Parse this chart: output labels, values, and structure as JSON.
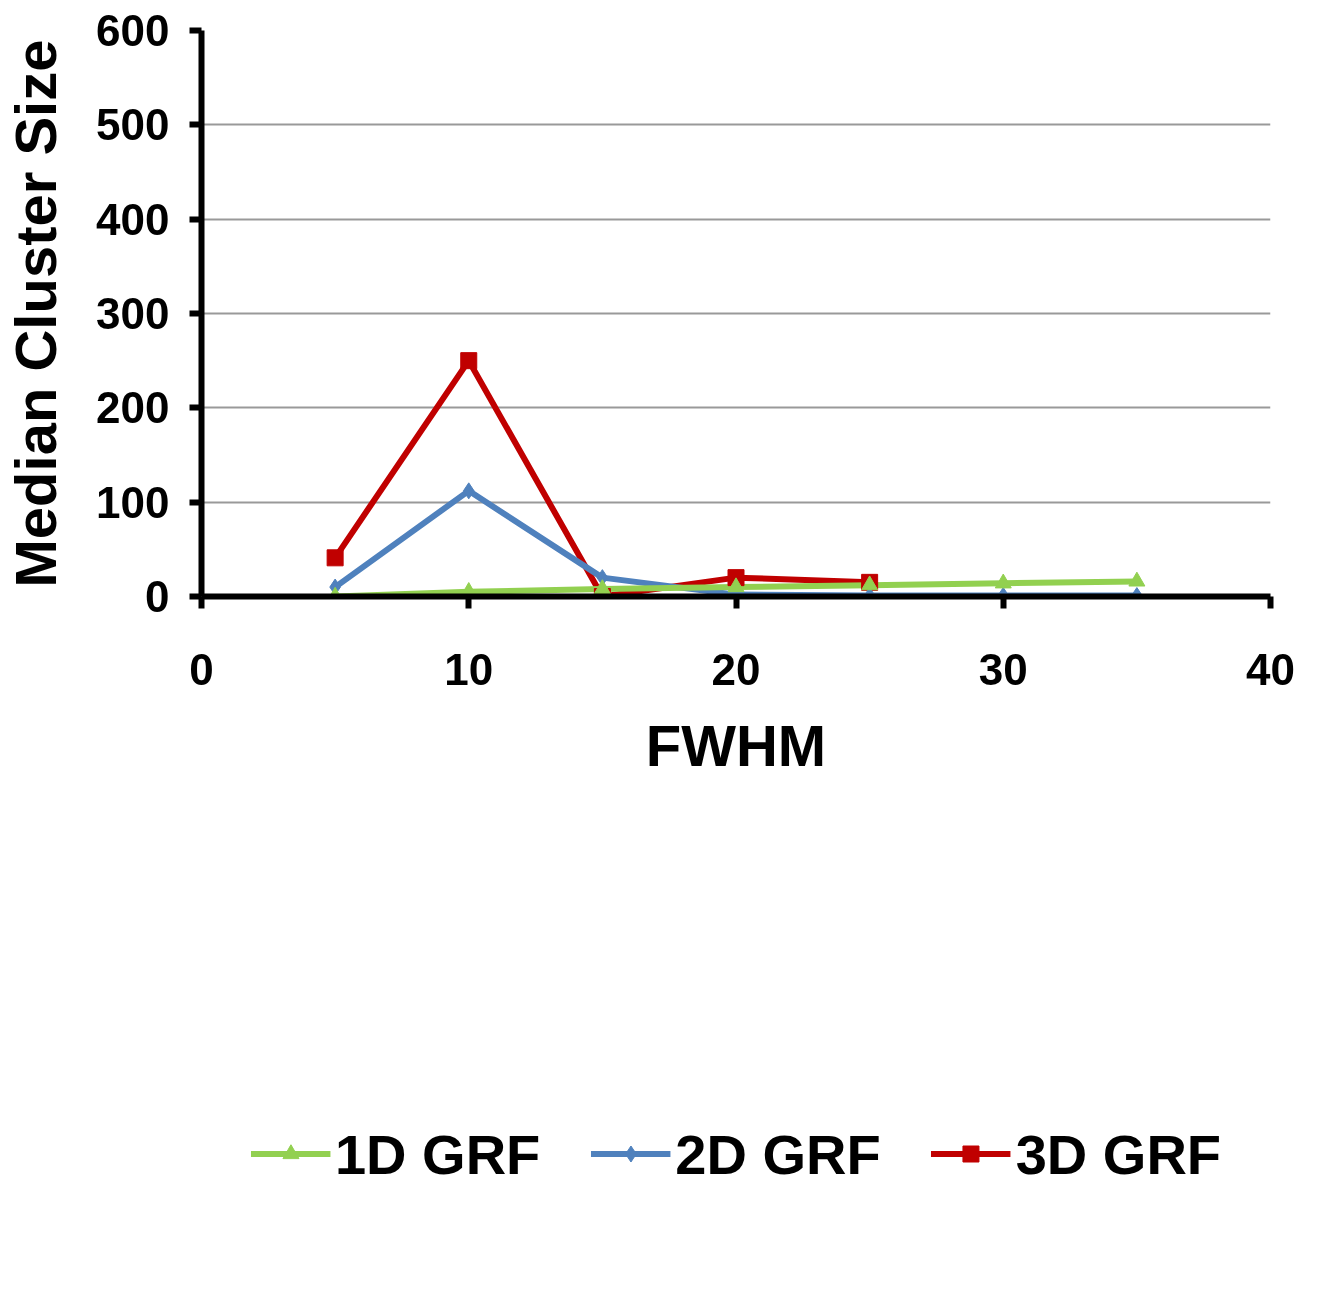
{
  "chart_data": {
    "type": "line",
    "xlabel": "FWHM",
    "ylabel": "Median Cluster Size",
    "x": [
      5,
      10,
      15,
      20,
      25,
      30,
      35
    ],
    "series": [
      {
        "name": "1D GRF",
        "color": "#92d050",
        "marker": "triangle",
        "values": [
          0,
          5,
          8,
          10,
          12,
          14,
          16
        ]
      },
      {
        "name": "2D GRF",
        "color": "#4f81bd",
        "marker": "diamond",
        "values": [
          10,
          112,
          20,
          2,
          1,
          1,
          1
        ]
      },
      {
        "name": "3D GRF",
        "color": "#c00000",
        "marker": "square",
        "values": [
          41,
          250,
          0,
          20,
          15,
          null,
          null
        ]
      }
    ],
    "xlim": [
      0,
      40
    ],
    "xticks": [
      0,
      10,
      20,
      30,
      40
    ],
    "ylim": [
      0,
      600
    ],
    "yticks": [
      0,
      100,
      200,
      300,
      400,
      500,
      600
    ],
    "grid": "y",
    "legend": "bottom",
    "line_style": "solid"
  }
}
